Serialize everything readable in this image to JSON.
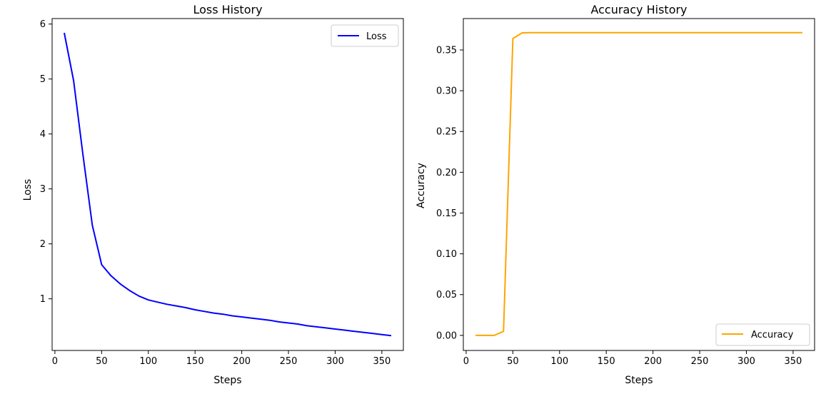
{
  "chart_data": [
    {
      "type": "line",
      "title": "Loss History",
      "xlabel": "Steps",
      "ylabel": "Loss",
      "xlim": [
        -3,
        373
      ],
      "ylim": [
        0.06,
        6.1
      ],
      "xticks": [
        "0",
        "50",
        "100",
        "150",
        "200",
        "250",
        "300",
        "350"
      ],
      "yticks": [
        "1",
        "2",
        "3",
        "4",
        "5",
        "6"
      ],
      "legend_position": "top-right",
      "grid": false,
      "series": [
        {
          "name": "Loss",
          "color": "#0000ff",
          "x": [
            10,
            20,
            30,
            40,
            50,
            60,
            70,
            80,
            90,
            100,
            110,
            120,
            130,
            140,
            150,
            160,
            170,
            180,
            190,
            200,
            210,
            220,
            230,
            240,
            250,
            260,
            270,
            280,
            290,
            300,
            310,
            320,
            330,
            340,
            350,
            360
          ],
          "y": [
            5.84,
            4.97,
            3.62,
            2.34,
            1.62,
            1.42,
            1.27,
            1.15,
            1.05,
            0.98,
            0.94,
            0.9,
            0.87,
            0.84,
            0.8,
            0.77,
            0.74,
            0.72,
            0.69,
            0.67,
            0.65,
            0.63,
            0.61,
            0.58,
            0.56,
            0.54,
            0.51,
            0.49,
            0.47,
            0.45,
            0.43,
            0.41,
            0.39,
            0.37,
            0.35,
            0.33
          ]
        }
      ]
    },
    {
      "type": "line",
      "title": "Accuracy History",
      "xlabel": "Steps",
      "ylabel": "Accuracy",
      "xlim": [
        -3,
        373
      ],
      "ylim": [
        -0.0185,
        0.3885
      ],
      "xticks": [
        "0",
        "50",
        "100",
        "150",
        "200",
        "250",
        "300",
        "350"
      ],
      "yticks": [
        "0.00",
        "0.05",
        "0.10",
        "0.15",
        "0.20",
        "0.25",
        "0.30",
        "0.35"
      ],
      "legend_position": "bottom-right",
      "grid": false,
      "series": [
        {
          "name": "Accuracy",
          "color": "#ffa500",
          "x": [
            10,
            20,
            30,
            40,
            50,
            60,
            70,
            80,
            90,
            100,
            110,
            120,
            130,
            140,
            150,
            160,
            170,
            180,
            190,
            200,
            210,
            220,
            230,
            240,
            250,
            260,
            270,
            280,
            290,
            300,
            310,
            320,
            330,
            340,
            350,
            360
          ],
          "y": [
            0.0,
            0.0,
            0.0,
            0.005,
            0.364,
            0.371,
            0.3712,
            0.3712,
            0.3713,
            0.3713,
            0.3712,
            0.3712,
            0.3712,
            0.3712,
            0.3712,
            0.3712,
            0.3712,
            0.3712,
            0.3712,
            0.3712,
            0.3712,
            0.3712,
            0.3712,
            0.3712,
            0.3712,
            0.3712,
            0.3712,
            0.3712,
            0.3712,
            0.3712,
            0.3712,
            0.3712,
            0.3712,
            0.3712,
            0.3712,
            0.3712
          ]
        }
      ]
    }
  ]
}
